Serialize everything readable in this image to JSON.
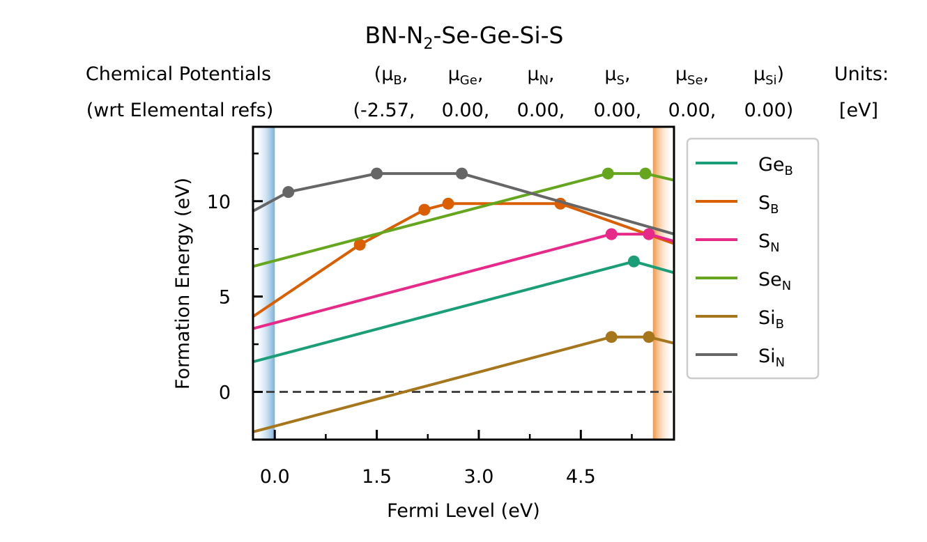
{
  "chart_data": {
    "type": "line",
    "title": {
      "main": "BN-N",
      "sub": "2",
      "rest": "-Se-Ge-Si-S"
    },
    "header": {
      "left_line1": "Chemical Potentials",
      "left_line2": "(wrt Elemental refs)",
      "mu_labels": [
        {
          "pre": "(μ",
          "sub": "B",
          "post": ","
        },
        {
          "pre": "μ",
          "sub": "Ge",
          "post": ","
        },
        {
          "pre": "μ",
          "sub": "N",
          "post": ","
        },
        {
          "pre": "μ",
          "sub": "S",
          "post": ","
        },
        {
          "pre": "μ",
          "sub": "Se",
          "post": ","
        },
        {
          "pre": "μ",
          "sub": "Si",
          "post": ")"
        }
      ],
      "mu_values": [
        "(-2.57,",
        "0.00,",
        "0.00,",
        "0.00,",
        "0.00,",
        "0.00)"
      ],
      "units_line1": "Units:",
      "units_line2": "[eV]"
    },
    "xlabel": "Fermi Level (eV)",
    "ylabel": "Formation Energy (eV)",
    "xlim": [
      -0.32,
      5.87
    ],
    "ylim": [
      -2.5,
      13.9
    ],
    "xticks": [
      0.0,
      1.5,
      3.0,
      4.5
    ],
    "xtick_labels": [
      "0.0",
      "1.5",
      "3.0",
      "4.5"
    ],
    "xminor": [
      0.75,
      2.25,
      3.75,
      5.25
    ],
    "yticks": [
      0,
      5,
      10
    ],
    "ytick_labels": [
      "0",
      "5",
      "10"
    ],
    "yminor": [
      2.5,
      7.5,
      12.5
    ],
    "band_gap_edges": {
      "vbm": 0.0,
      "cbm": 5.56
    },
    "zero_line": 0,
    "legend_position": "outside-right",
    "series": [
      {
        "name": "Ge",
        "sub": "B",
        "color": "#1b9e77",
        "points": [
          [
            -0.32,
            1.58
          ],
          [
            5.28,
            6.84
          ],
          [
            5.87,
            6.25
          ]
        ],
        "markers": [
          [
            5.28,
            6.84
          ]
        ]
      },
      {
        "name": "S",
        "sub": "B",
        "color": "#d95f02",
        "points": [
          [
            -0.32,
            3.95
          ],
          [
            1.25,
            7.72
          ],
          [
            2.2,
            9.55
          ],
          [
            2.55,
            9.87
          ],
          [
            4.2,
            9.87
          ],
          [
            5.87,
            7.78
          ]
        ],
        "markers": [
          [
            1.25,
            7.72
          ],
          [
            2.2,
            9.55
          ],
          [
            2.55,
            9.87
          ],
          [
            4.2,
            9.87
          ]
        ]
      },
      {
        "name": "S",
        "sub": "N",
        "color": "#e7298a",
        "points": [
          [
            -0.32,
            3.32
          ],
          [
            4.95,
            8.27
          ],
          [
            5.5,
            8.27
          ],
          [
            5.87,
            7.9
          ]
        ],
        "markers": [
          [
            4.95,
            8.27
          ],
          [
            5.5,
            8.27
          ]
        ]
      },
      {
        "name": "Se",
        "sub": "N",
        "color": "#66a61e",
        "points": [
          [
            -0.32,
            6.58
          ],
          [
            4.9,
            11.45
          ],
          [
            5.45,
            11.45
          ],
          [
            5.87,
            11.1
          ]
        ],
        "markers": [
          [
            4.9,
            11.45
          ],
          [
            5.45,
            11.45
          ]
        ]
      },
      {
        "name": "Si",
        "sub": "B",
        "color": "#a6761d",
        "points": [
          [
            -0.32,
            -2.1
          ],
          [
            4.95,
            2.88
          ],
          [
            5.5,
            2.88
          ],
          [
            5.87,
            2.55
          ]
        ],
        "markers": [
          [
            4.95,
            2.88
          ],
          [
            5.5,
            2.88
          ]
        ]
      },
      {
        "name": "Si",
        "sub": "N",
        "color": "#666666",
        "points": [
          [
            -0.32,
            9.48
          ],
          [
            0.2,
            10.48
          ],
          [
            1.5,
            11.45
          ],
          [
            2.75,
            11.45
          ],
          [
            5.87,
            8.28
          ]
        ],
        "markers": [
          [
            0.2,
            10.48
          ],
          [
            1.5,
            11.45
          ],
          [
            2.75,
            11.45
          ]
        ]
      }
    ]
  }
}
